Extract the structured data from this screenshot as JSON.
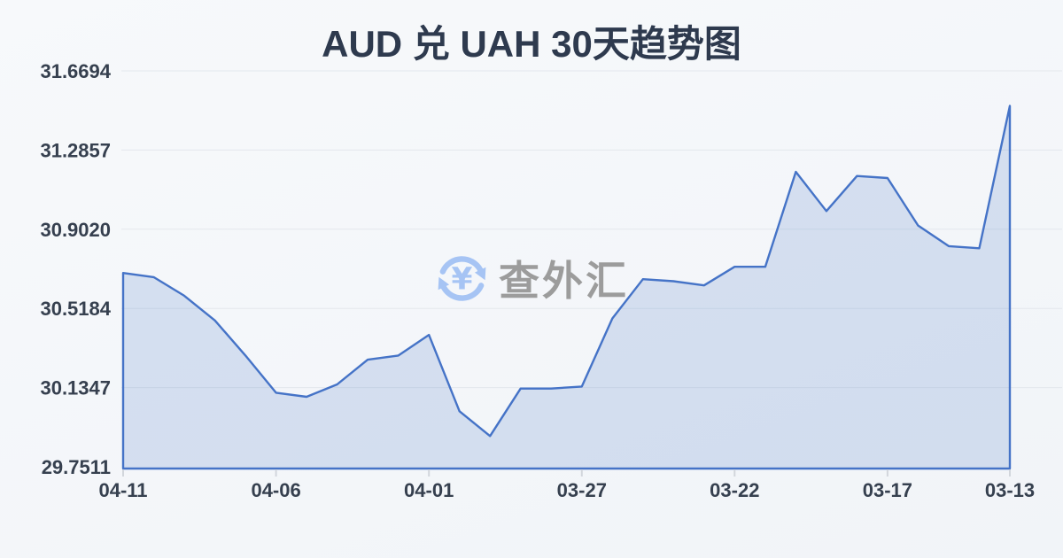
{
  "page": {
    "title": "AUD 兑 UAH 30天趋势图",
    "watermark": {
      "text": "查外汇",
      "icon": "currency-exchange-refresh-yen-icon",
      "icon_symbol": "¥",
      "icon_color": "#a6c4f4",
      "text_color": "#9c9c9c"
    }
  },
  "colors": {
    "background": "#f5f7fa",
    "title_text": "#2e3a4e",
    "axis_text": "#36404f",
    "gridline": "#e3e7ed",
    "tick": "#d2d6dc",
    "line": "#4573c7",
    "area_fill": "rgba(68,114,196,0.18)"
  },
  "chart_data": {
    "type": "area",
    "title": "AUD 兑 UAH 30天趋势图",
    "x": [
      "04-11",
      "04-10",
      "04-09",
      "04-08",
      "04-07",
      "04-06",
      "04-05",
      "04-04",
      "04-03",
      "04-02",
      "04-01",
      "03-31",
      "03-30",
      "03-29",
      "03-28",
      "03-27",
      "03-26",
      "03-25",
      "03-24",
      "03-23",
      "03-22",
      "03-21",
      "03-20",
      "03-19",
      "03-18",
      "03-17",
      "03-16",
      "03-15",
      "03-14",
      "03-13"
    ],
    "values": [
      30.69,
      30.67,
      30.58,
      30.46,
      30.29,
      30.11,
      30.09,
      30.15,
      30.27,
      30.29,
      30.39,
      30.02,
      29.9,
      30.13,
      30.13,
      30.14,
      30.47,
      30.66,
      30.65,
      30.63,
      30.72,
      30.72,
      31.18,
      30.99,
      31.16,
      31.15,
      30.92,
      30.82,
      30.81,
      31.5
    ],
    "x_tick_labels": [
      "04-11",
      "04-06",
      "04-01",
      "03-27",
      "03-22",
      "03-17",
      "03-13"
    ],
    "x_tick_indices": [
      0,
      5,
      10,
      15,
      20,
      25,
      29
    ],
    "y_ticks": [
      31.6694,
      31.2857,
      30.902,
      30.5184,
      30.1347,
      29.7511
    ],
    "ylim": [
      29.7511,
      31.6694
    ],
    "xlabel": "",
    "ylabel": "",
    "grid": "horizontal-only",
    "legend": "none",
    "note_x_direction": "dates run newest (04-11) at left to oldest (03-13) at right"
  }
}
